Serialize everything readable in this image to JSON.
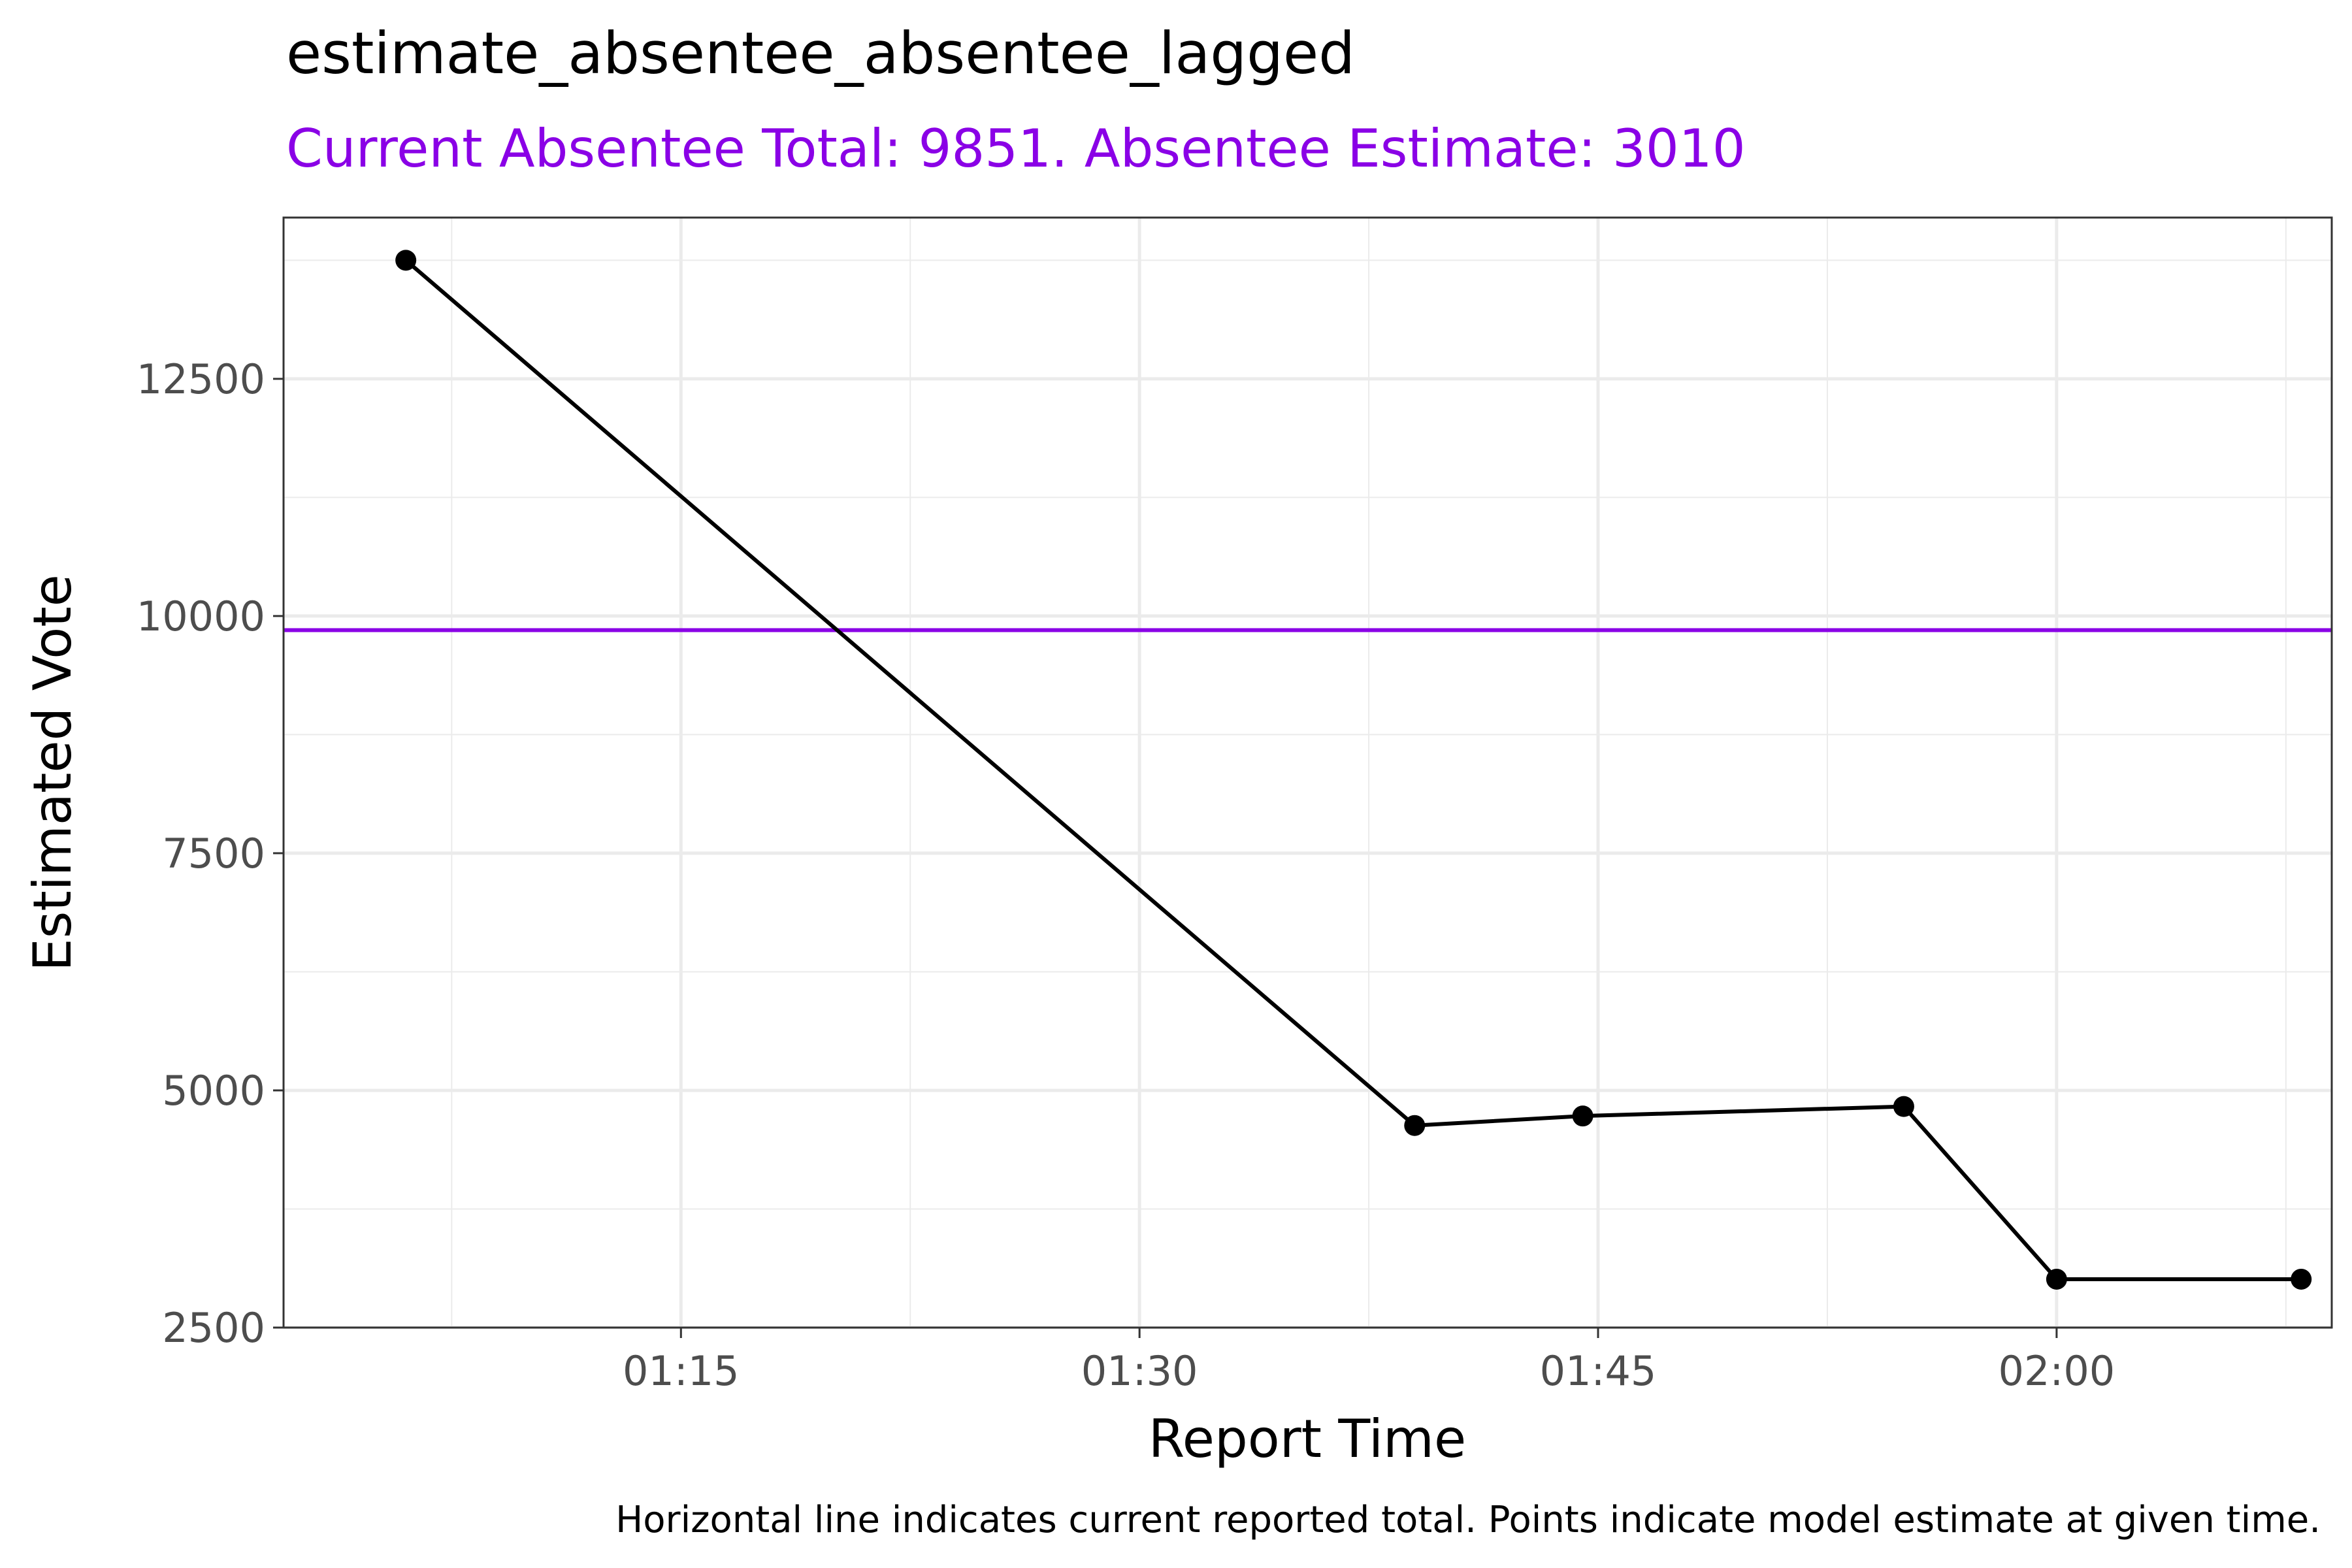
{
  "chart_data": {
    "type": "line",
    "title": "estimate_absentee_absentee_lagged",
    "subtitle": "Current Absentee Total: 9851. Absentee Estimate: 3010",
    "xlabel": "Report Time",
    "ylabel": "Estimated Vote",
    "caption": "Horizontal line indicates current reported total. Points indicate model estimate at given time.",
    "xlim": [
      "01:02",
      "02:09"
    ],
    "ylim": [
      2500,
      14200
    ],
    "x_ticks": [
      "01:15",
      "01:30",
      "01:45",
      "02:00"
    ],
    "y_ticks": [
      2500,
      5000,
      7500,
      10000,
      12500
    ],
    "grid": true,
    "series": [
      {
        "x": [
          "01:06",
          "01:39",
          "01:44.5",
          "01:55",
          "02:00",
          "02:08"
        ],
        "y": [
          13750,
          4630,
          4730,
          4830,
          3010,
          3010
        ]
      }
    ],
    "reference_line": {
      "y": 9851
    },
    "colors": {
      "series": "#000000",
      "reference": "#8A00E6",
      "subtitle": "#8A00E6",
      "grid": "#EBEBEB",
      "axis_text": "#4D4D4D"
    }
  }
}
